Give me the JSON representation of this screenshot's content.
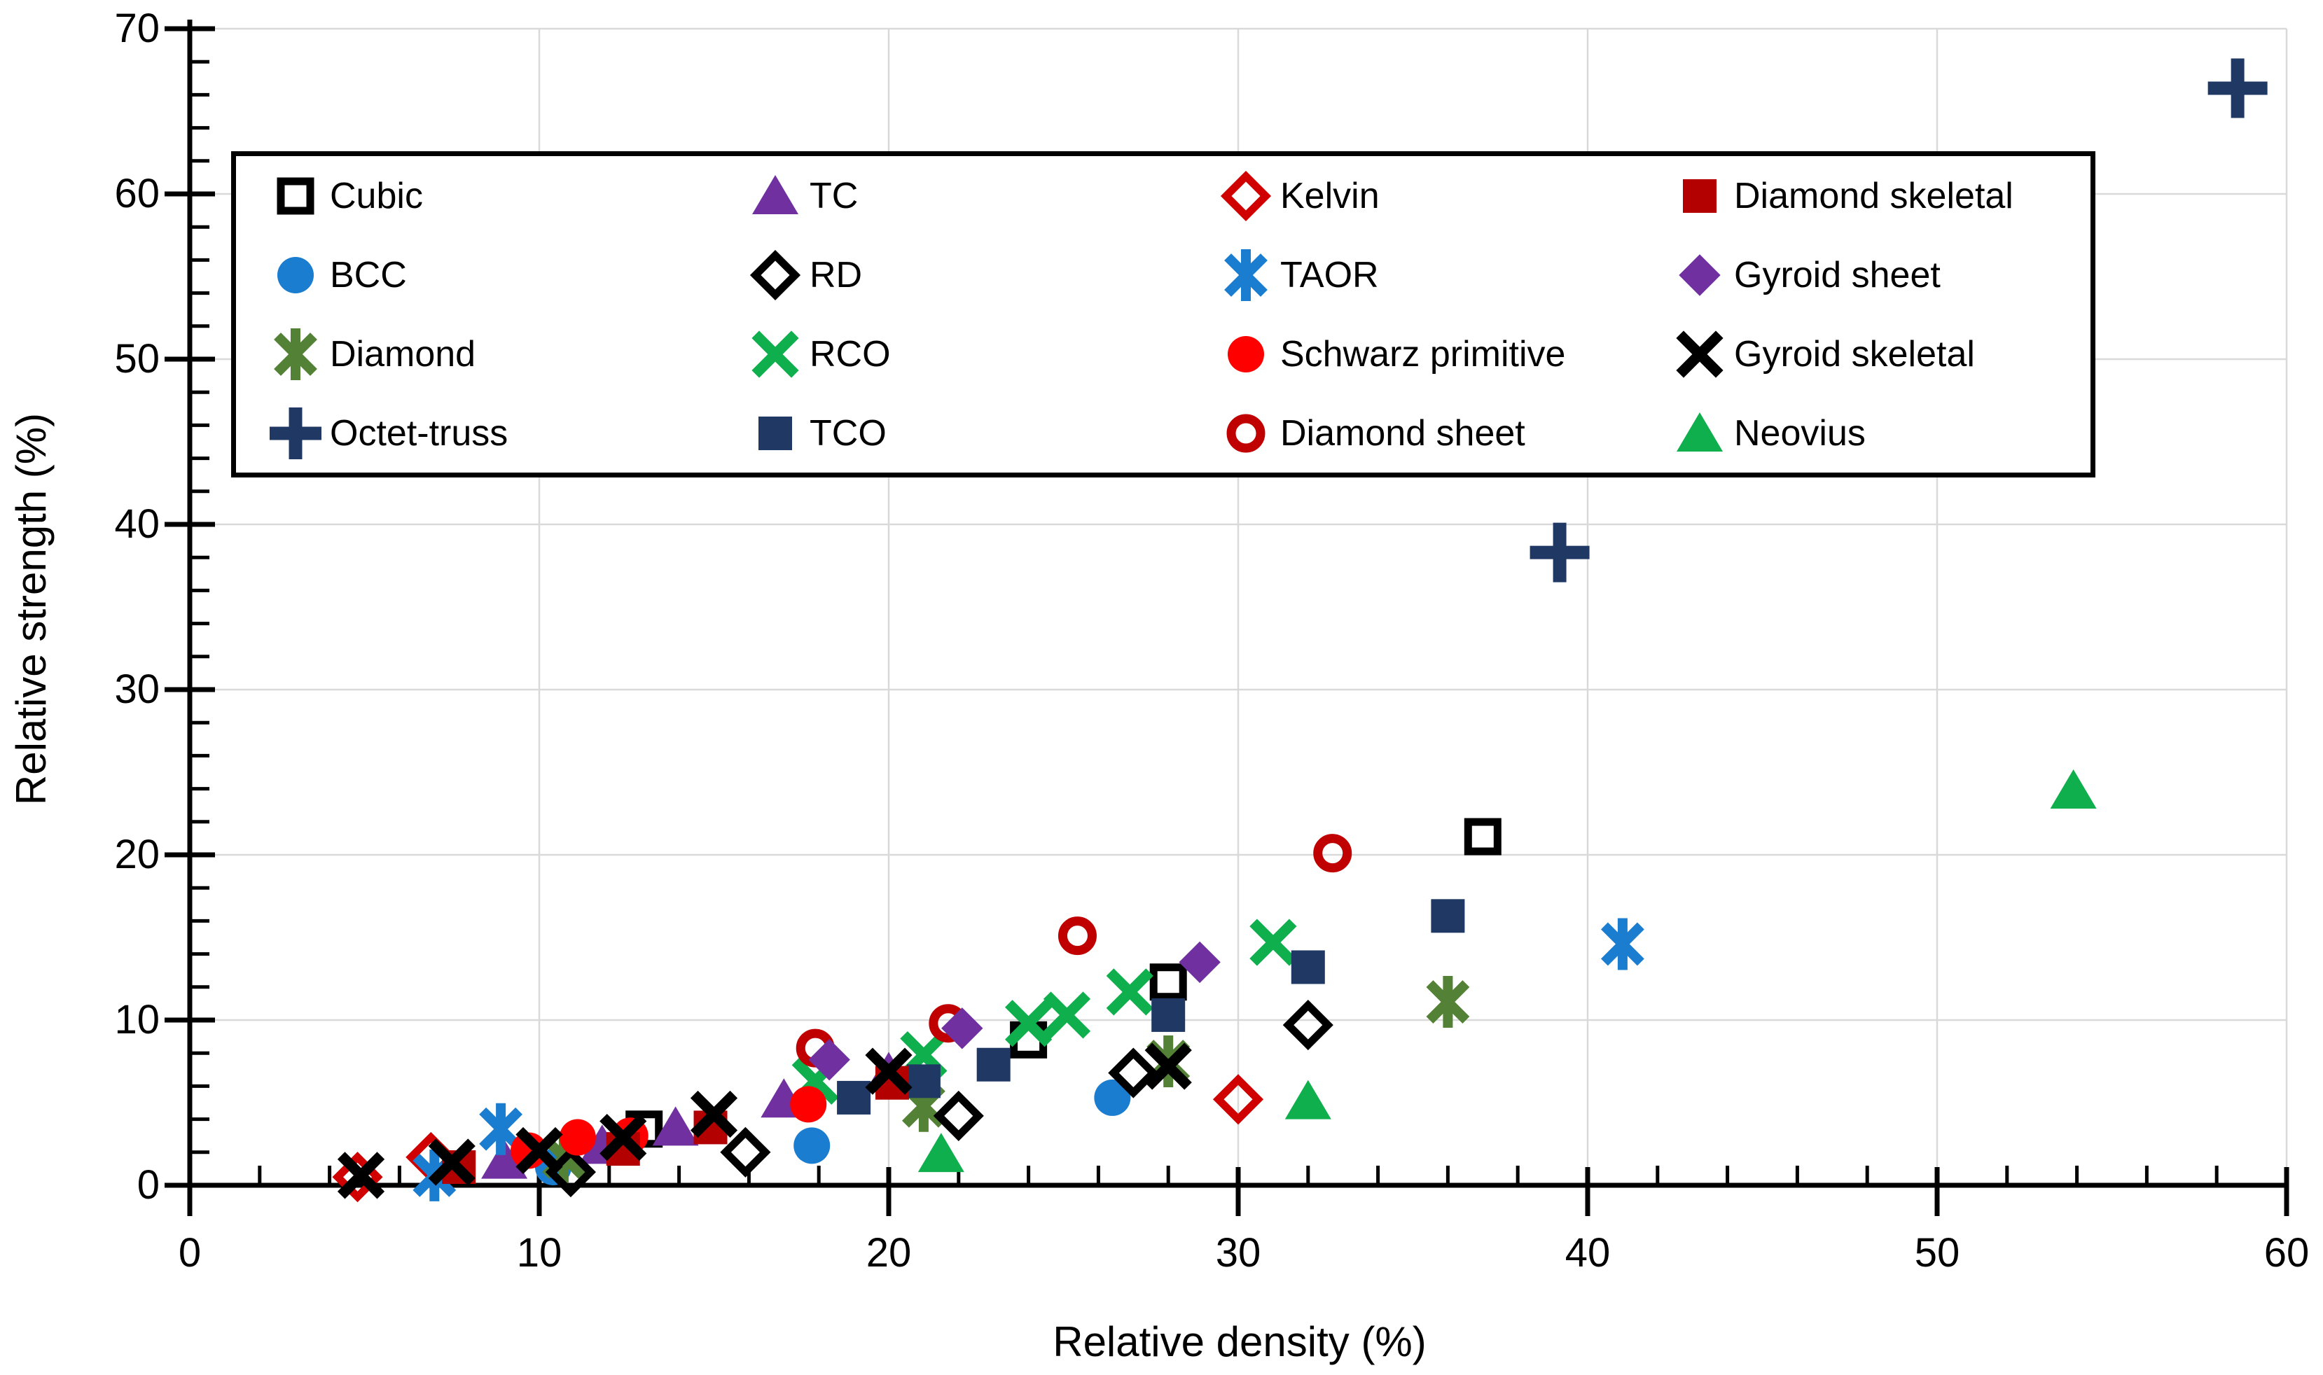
{
  "chart_data": {
    "type": "scatter",
    "title": "",
    "xlabel": "Relative density (%)",
    "ylabel": "Relative strength (%)",
    "xlim": [
      0,
      60
    ],
    "ylim": [
      0,
      70
    ],
    "x_ticks": [
      "0",
      "10",
      "20",
      "30",
      "40",
      "50",
      "60"
    ],
    "y_ticks": [
      "0",
      "10",
      "20",
      "30",
      "40",
      "50",
      "60",
      "70"
    ],
    "minor_tick_step": 2,
    "grid": true,
    "gridline_color": "#d9d9d9",
    "axis_color": "#000000",
    "legend_position": "top-inside",
    "series": [
      {
        "name": "Cubic",
        "marker": "open-square",
        "color": "#000000",
        "points": [
          [
            13,
            3.4
          ],
          [
            24,
            8.8
          ],
          [
            28,
            12.3
          ],
          [
            37,
            21.1
          ]
        ]
      },
      {
        "name": "BCC",
        "marker": "filled-circle",
        "color": "#1a7dd0",
        "points": [
          [
            10.4,
            1.1
          ],
          [
            17.8,
            2.4
          ],
          [
            26.4,
            5.3
          ]
        ]
      },
      {
        "name": "Diamond",
        "marker": "asterisk",
        "color": "#538135",
        "points": [
          [
            10.7,
            1.7
          ],
          [
            21,
            4.8
          ],
          [
            28,
            7.5
          ],
          [
            36,
            11.1
          ]
        ]
      },
      {
        "name": "Octet-truss",
        "marker": "plus",
        "color": "#1f3864",
        "points": [
          [
            39.2,
            38.3
          ],
          [
            58.6,
            66.4
          ]
        ]
      },
      {
        "name": "TC",
        "marker": "filled-triangle",
        "color": "#7030a0",
        "points": [
          [
            9,
            1.5
          ],
          [
            11.8,
            2.4
          ],
          [
            13.9,
            3.5
          ],
          [
            17,
            5.2
          ],
          [
            20,
            6.8
          ]
        ]
      },
      {
        "name": "RD",
        "marker": "open-diamond",
        "color": "#000000",
        "points": [
          [
            10.9,
            0.8
          ],
          [
            15.9,
            2.0
          ],
          [
            22,
            4.2
          ],
          [
            27,
            6.8
          ],
          [
            32,
            9.7
          ]
        ]
      },
      {
        "name": "RCO",
        "marker": "x",
        "color": "#0faf4d",
        "points": [
          [
            17.9,
            6.3
          ],
          [
            21,
            7.9
          ],
          [
            24,
            9.8
          ],
          [
            25.1,
            10.3
          ],
          [
            26.9,
            11.7
          ],
          [
            31,
            14.7
          ]
        ]
      },
      {
        "name": "TCO",
        "marker": "filled-square",
        "color": "#1f3864",
        "points": [
          [
            19,
            5.3
          ],
          [
            21,
            6.3
          ],
          [
            23,
            7.3
          ],
          [
            28,
            10.3
          ],
          [
            32,
            13.2
          ],
          [
            36,
            16.3
          ]
        ]
      },
      {
        "name": "Kelvin",
        "marker": "open-diamond",
        "color": "#d00000",
        "points": [
          [
            4.8,
            0.5
          ],
          [
            6.9,
            1.7
          ],
          [
            30,
            5.2
          ]
        ]
      },
      {
        "name": "TAOR",
        "marker": "asterisk",
        "color": "#1a7dd0",
        "points": [
          [
            7,
            0.6
          ],
          [
            8.9,
            3.4
          ],
          [
            41,
            14.6
          ]
        ]
      },
      {
        "name": "Schwarz primitive",
        "marker": "filled-circle",
        "color": "#ff0000",
        "points": [
          [
            9.7,
            2.1
          ],
          [
            11.1,
            2.9
          ],
          [
            12.6,
            3.0
          ],
          [
            17.7,
            4.9
          ]
        ]
      },
      {
        "name": "Diamond sheet",
        "marker": "open-circle",
        "color": "#c00000",
        "points": [
          [
            17.9,
            8.3
          ],
          [
            21.7,
            9.8
          ],
          [
            25.4,
            15.1
          ],
          [
            32.7,
            20.1
          ]
        ]
      },
      {
        "name": "Diamond skeletal",
        "marker": "filled-square",
        "color": "#b30000",
        "points": [
          [
            7.7,
            1.1
          ],
          [
            12.4,
            2.2
          ],
          [
            14.9,
            3.5
          ],
          [
            20.1,
            6.2
          ]
        ]
      },
      {
        "name": "Gyroid sheet",
        "marker": "filled-diamond",
        "color": "#7030a0",
        "points": [
          [
            18.3,
            7.6
          ],
          [
            22.1,
            9.5
          ],
          [
            28.9,
            13.5
          ]
        ]
      },
      {
        "name": "Gyroid skeletal",
        "marker": "x",
        "color": "#000000",
        "points": [
          [
            4.9,
            0.6
          ],
          [
            7.5,
            1.4
          ],
          [
            10,
            2.1
          ],
          [
            12.4,
            2.9
          ],
          [
            15,
            4.3
          ],
          [
            20,
            6.9
          ],
          [
            28,
            7.2
          ]
        ]
      },
      {
        "name": "Neovius",
        "marker": "filled-triangle",
        "color": "#0faf4d",
        "points": [
          [
            21.5,
            1.9
          ],
          [
            32,
            5.1
          ],
          [
            53.9,
            23.9
          ]
        ]
      }
    ]
  }
}
